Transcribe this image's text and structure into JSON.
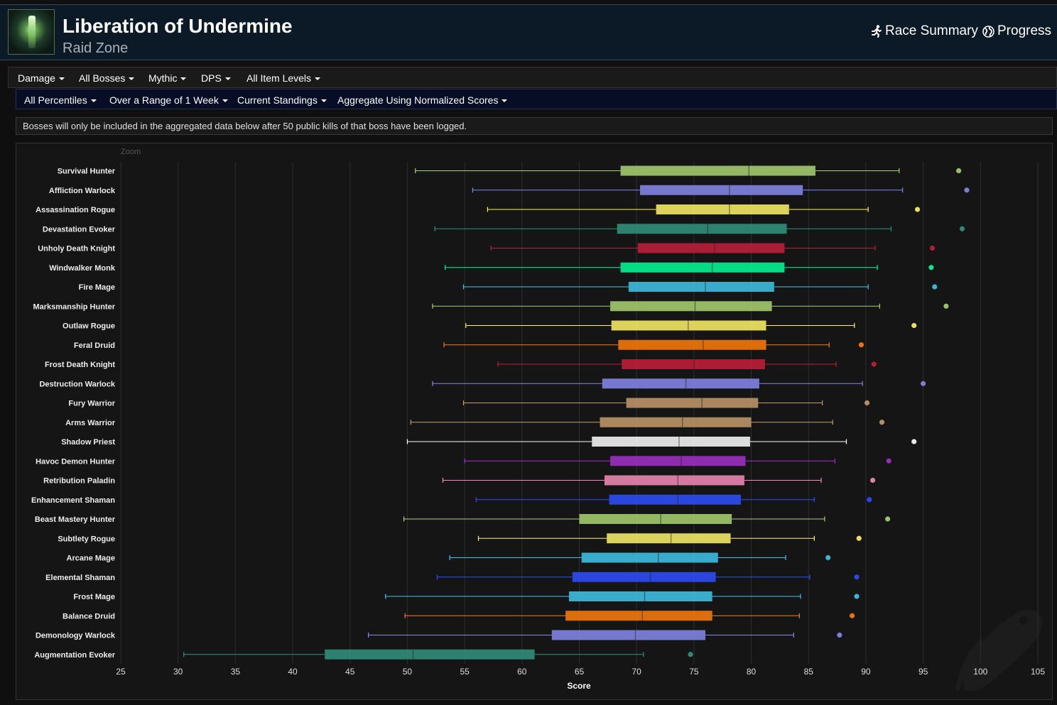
{
  "header": {
    "title": "Liberation of Undermine",
    "subtitle": "Raid Zone",
    "race_summary": "Race Summary",
    "progress": "Progress"
  },
  "filters": {
    "row1": [
      "Damage",
      "All Bosses",
      "Mythic",
      "DPS",
      "All Item Levels"
    ],
    "row2": [
      "All Percentiles",
      "Over a Range of 1 Week",
      "Current Standings",
      "Aggregate Using Normalized Scores"
    ]
  },
  "notice": "Bosses will only be included in the aggregated data below after 50 public kills of that boss have been logged.",
  "chart_data": {
    "type": "boxplot",
    "zoom_label": "Zoom",
    "xlabel": "Score",
    "xlim": [
      25,
      105
    ],
    "xticks": [
      25,
      30,
      35,
      40,
      45,
      50,
      55,
      60,
      65,
      70,
      75,
      80,
      85,
      90,
      95,
      100,
      105
    ],
    "grid": true,
    "series": [
      {
        "name": "Survival Hunter",
        "color": "#aad372",
        "min": 50.7,
        "q1": 68.6,
        "median": 79.8,
        "q3": 85.6,
        "max": 92.9,
        "outlier": 98.1
      },
      {
        "name": "Affliction Warlock",
        "color": "#8788ee",
        "min": 55.7,
        "q1": 70.3,
        "median": 78.1,
        "q3": 84.5,
        "max": 93.2,
        "outlier": 98.8
      },
      {
        "name": "Assassination Rogue",
        "color": "#fff468",
        "min": 57.0,
        "q1": 71.7,
        "median": 78.1,
        "q3": 83.3,
        "max": 90.2,
        "outlier": 94.5
      },
      {
        "name": "Devastation Evoker",
        "color": "#33937f",
        "min": 52.4,
        "q1": 68.3,
        "median": 76.2,
        "q3": 83.1,
        "max": 92.2,
        "outlier": 98.4
      },
      {
        "name": "Unholy Death Knight",
        "color": "#c41e3a",
        "min": 57.3,
        "q1": 70.1,
        "median": 76.8,
        "q3": 82.9,
        "max": 90.8,
        "outlier": 95.8
      },
      {
        "name": "Windwalker Monk",
        "color": "#00ff98",
        "min": 53.3,
        "q1": 68.6,
        "median": 76.6,
        "q3": 82.9,
        "max": 91.0,
        "outlier": 95.7
      },
      {
        "name": "Fire Mage",
        "color": "#3fc7eb",
        "min": 54.9,
        "q1": 69.3,
        "median": 76.0,
        "q3": 82.0,
        "max": 90.2,
        "outlier": 96.0
      },
      {
        "name": "Marksmanship Hunter",
        "color": "#aad372",
        "min": 52.2,
        "q1": 67.7,
        "median": 75.1,
        "q3": 81.8,
        "max": 91.2,
        "outlier": 97.0
      },
      {
        "name": "Outlaw Rogue",
        "color": "#fff468",
        "min": 55.1,
        "q1": 67.8,
        "median": 74.5,
        "q3": 81.3,
        "max": 89.0,
        "outlier": 94.2
      },
      {
        "name": "Feral Druid",
        "color": "#ff7c0a",
        "min": 53.2,
        "q1": 68.4,
        "median": 75.8,
        "q3": 81.3,
        "max": 86.8,
        "outlier": 89.6
      },
      {
        "name": "Frost Death Knight",
        "color": "#c41e3a",
        "min": 57.9,
        "q1": 68.7,
        "median": 75.0,
        "q3": 81.2,
        "max": 87.4,
        "outlier": 90.7
      },
      {
        "name": "Destruction Warlock",
        "color": "#8788ee",
        "min": 52.2,
        "q1": 67.0,
        "median": 74.3,
        "q3": 80.7,
        "max": 89.7,
        "outlier": 95.0
      },
      {
        "name": "Fury Warrior",
        "color": "#c69b6d",
        "min": 54.9,
        "q1": 69.1,
        "median": 75.7,
        "q3": 80.6,
        "max": 86.2,
        "outlier": 90.1
      },
      {
        "name": "Arms Warrior",
        "color": "#c69b6d",
        "min": 50.3,
        "q1": 66.8,
        "median": 74.0,
        "q3": 80.0,
        "max": 87.1,
        "outlier": 91.4
      },
      {
        "name": "Shadow Priest",
        "color": "#ffffff",
        "min": 50.0,
        "q1": 66.1,
        "median": 73.7,
        "q3": 79.9,
        "max": 88.3,
        "outlier": 94.2
      },
      {
        "name": "Havoc Demon Hunter",
        "color": "#a330c9",
        "min": 55.0,
        "q1": 67.7,
        "median": 73.9,
        "q3": 79.5,
        "max": 87.3,
        "outlier": 92.0
      },
      {
        "name": "Retribution Paladin",
        "color": "#f48cba",
        "min": 53.1,
        "q1": 67.2,
        "median": 73.6,
        "q3": 79.4,
        "max": 86.1,
        "outlier": 90.6
      },
      {
        "name": "Enhancement Shaman",
        "color": "#2f4fff",
        "min": 56.0,
        "q1": 67.6,
        "median": 73.6,
        "q3": 79.1,
        "max": 85.5,
        "outlier": 90.3
      },
      {
        "name": "Beast Mastery Hunter",
        "color": "#aad372",
        "min": 49.7,
        "q1": 65.0,
        "median": 72.1,
        "q3": 78.3,
        "max": 86.4,
        "outlier": 91.9
      },
      {
        "name": "Subtlety Rogue",
        "color": "#fff468",
        "min": 56.2,
        "q1": 67.4,
        "median": 73.0,
        "q3": 78.2,
        "max": 85.5,
        "outlier": 89.4
      },
      {
        "name": "Arcane Mage",
        "color": "#3fc7eb",
        "min": 53.7,
        "q1": 65.2,
        "median": 71.9,
        "q3": 77.1,
        "max": 83.0,
        "outlier": 86.7
      },
      {
        "name": "Elemental Shaman",
        "color": "#2f4fff",
        "min": 52.6,
        "q1": 64.4,
        "median": 71.2,
        "q3": 76.9,
        "max": 85.1,
        "outlier": 89.2
      },
      {
        "name": "Frost Mage",
        "color": "#3fc7eb",
        "min": 48.1,
        "q1": 64.1,
        "median": 70.7,
        "q3": 76.6,
        "max": 84.3,
        "outlier": 89.2
      },
      {
        "name": "Balance Druid",
        "color": "#ff7c0a",
        "min": 49.8,
        "q1": 63.8,
        "median": 70.5,
        "q3": 76.6,
        "max": 84.2,
        "outlier": 88.8
      },
      {
        "name": "Demonology Warlock",
        "color": "#8788ee",
        "min": 46.6,
        "q1": 62.6,
        "median": 69.9,
        "q3": 76.0,
        "max": 83.7,
        "outlier": 87.7
      },
      {
        "name": "Augmentation Evoker",
        "color": "#33937f",
        "min": 30.5,
        "q1": 42.8,
        "median": 50.5,
        "q3": 61.1,
        "max": 70.6,
        "outlier": 74.7
      }
    ]
  }
}
